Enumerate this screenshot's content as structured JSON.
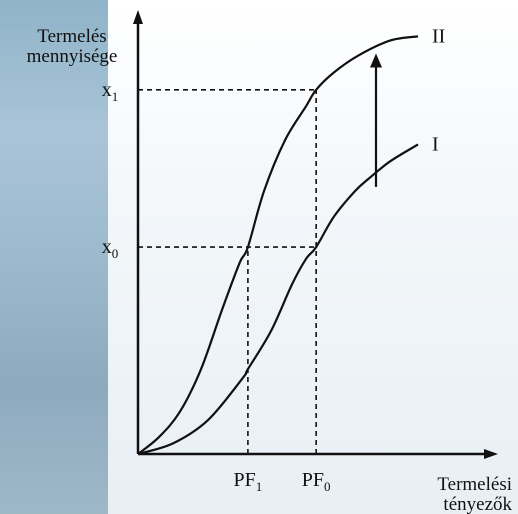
{
  "chart_data": {
    "type": "line",
    "title": "",
    "ylabel_line1": "Termelés",
    "ylabel_line2": "mennyisége",
    "xlabel_line1": "Termelési",
    "xlabel_line2": "tényezők",
    "xlim": [
      0,
      1
    ],
    "ylim": [
      0,
      1
    ],
    "x_ticks": [
      {
        "base": "PF",
        "sub": "1",
        "value": 0.314
      },
      {
        "base": "PF",
        "sub": "0",
        "value": 0.509
      }
    ],
    "y_ticks": [
      {
        "base": "x",
        "sub": "1",
        "value": 0.859
      },
      {
        "base": "x",
        "sub": "0",
        "value": 0.488
      }
    ],
    "series": [
      {
        "name": "II",
        "x": [
          0,
          0.06,
          0.12,
          0.18,
          0.24,
          0.29,
          0.314,
          0.36,
          0.42,
          0.48,
          0.509,
          0.56,
          0.63,
          0.72,
          0.8
        ],
        "y": [
          0,
          0.04,
          0.1,
          0.2,
          0.34,
          0.45,
          0.488,
          0.62,
          0.74,
          0.82,
          0.859,
          0.9,
          0.94,
          0.975,
          0.985
        ]
      },
      {
        "name": "I",
        "x": [
          0,
          0.1,
          0.2,
          0.3,
          0.314,
          0.38,
          0.44,
          0.48,
          0.509,
          0.56,
          0.62,
          0.66,
          0.72,
          0.8
        ],
        "y": [
          0,
          0.025,
          0.08,
          0.18,
          0.2,
          0.29,
          0.4,
          0.46,
          0.488,
          0.56,
          0.62,
          0.65,
          0.69,
          0.73
        ]
      }
    ],
    "arrow": {
      "x": 0.68,
      "y_from": 0.63,
      "y_to": 0.94
    },
    "grid": false
  }
}
